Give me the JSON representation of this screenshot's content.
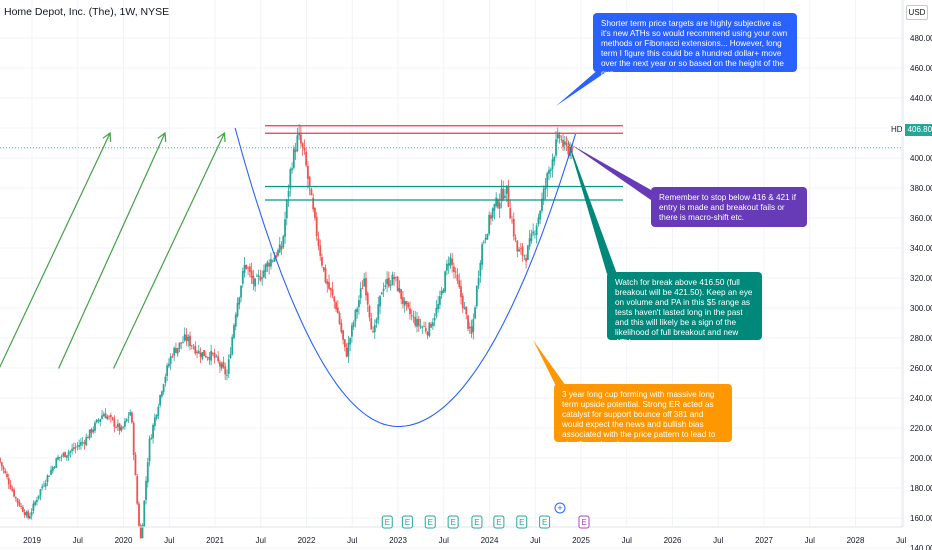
{
  "header": {
    "title": "Home Depot, Inc. (The), 1W, NYSE",
    "currency": "USD"
  },
  "price_tag": {
    "symbol": "HD",
    "value": "406.80"
  },
  "notes": [
    {
      "id": "blue",
      "color": "#2962ff",
      "text": "Shorter term price targets are highly subjective as it's new ATHs so would recommend using your own methods or Fibonacci extensions... However, long term I figure this could be a hundred dollar+ move over the next year or so based on the height of the cup."
    },
    {
      "id": "purple",
      "color": "#673ab7",
      "text": "Remember to stop below 416 & 421 if entry is made and breakout fails or there is macro-shift etc."
    },
    {
      "id": "teal",
      "color": "#00897b",
      "text": "Watch for break above 416.50 (full breakout will be 421.50). Keep an eye on volume and PA in this $5 range as tests haven't lasted long in the past and this will likely be a sign of the likelihood of full breakout and new ATHs."
    },
    {
      "id": "orange",
      "color": "#ff9800",
      "text": "3 year long cup forming with massive long term upside potential. Strong ER acted as catalyst for support bounce off 381 and would expect the news and bullish bias associated with the price pattern to lead to significant breakout."
    }
  ],
  "chart_data": {
    "type": "candlestick",
    "price_axis": {
      "ticks": [
        "480.00",
        "460.00",
        "440.00",
        "420.00",
        "400.00",
        "380.00",
        "360.00",
        "340.00",
        "320.00",
        "300.00",
        "280.00",
        "260.00",
        "240.00",
        "220.00",
        "200.00",
        "180.00",
        "160.00",
        "140.00"
      ],
      "range": [
        137,
        487
      ]
    },
    "time_axis": {
      "ticks": [
        "2019",
        "Jul",
        "2020",
        "Jul",
        "2021",
        "Jul",
        "2022",
        "Jul",
        "2023",
        "Jul",
        "2024",
        "Jul",
        "2025",
        "Jul",
        "2026",
        "Jul",
        "2027",
        "Jul",
        "2028",
        "Jul"
      ],
      "range": [
        "2018-08",
        "2028-12"
      ]
    },
    "last_price": 406.8,
    "levels": {
      "red": [
        421.5,
        416.5
      ],
      "green": [
        381,
        372
      ]
    },
    "price_path": [
      {
        "t": 2018.65,
        "p": 200
      },
      {
        "t": 2018.85,
        "p": 172
      },
      {
        "t": 2018.98,
        "p": 160
      },
      {
        "t": 2019.12,
        "p": 180
      },
      {
        "t": 2019.3,
        "p": 200
      },
      {
        "t": 2019.45,
        "p": 205
      },
      {
        "t": 2019.6,
        "p": 212
      },
      {
        "t": 2019.8,
        "p": 230
      },
      {
        "t": 2020.0,
        "p": 218
      },
      {
        "t": 2020.1,
        "p": 232
      },
      {
        "t": 2020.18,
        "p": 160
      },
      {
        "t": 2020.21,
        "p": 145
      },
      {
        "t": 2020.3,
        "p": 210
      },
      {
        "t": 2020.45,
        "p": 250
      },
      {
        "t": 2020.55,
        "p": 270
      },
      {
        "t": 2020.7,
        "p": 280
      },
      {
        "t": 2020.85,
        "p": 270
      },
      {
        "t": 2021.0,
        "p": 268
      },
      {
        "t": 2021.15,
        "p": 255
      },
      {
        "t": 2021.25,
        "p": 300
      },
      {
        "t": 2021.35,
        "p": 330
      },
      {
        "t": 2021.45,
        "p": 315
      },
      {
        "t": 2021.6,
        "p": 330
      },
      {
        "t": 2021.75,
        "p": 340
      },
      {
        "t": 2021.85,
        "p": 395
      },
      {
        "t": 2021.93,
        "p": 415
      },
      {
        "t": 2022.0,
        "p": 400
      },
      {
        "t": 2022.1,
        "p": 360
      },
      {
        "t": 2022.22,
        "p": 320
      },
      {
        "t": 2022.35,
        "p": 300
      },
      {
        "t": 2022.45,
        "p": 268
      },
      {
        "t": 2022.55,
        "p": 295
      },
      {
        "t": 2022.65,
        "p": 320
      },
      {
        "t": 2022.75,
        "p": 280
      },
      {
        "t": 2022.85,
        "p": 315
      },
      {
        "t": 2022.98,
        "p": 320
      },
      {
        "t": 2023.1,
        "p": 300
      },
      {
        "t": 2023.22,
        "p": 290
      },
      {
        "t": 2023.35,
        "p": 285
      },
      {
        "t": 2023.48,
        "p": 305
      },
      {
        "t": 2023.58,
        "p": 335
      },
      {
        "t": 2023.72,
        "p": 305
      },
      {
        "t": 2023.82,
        "p": 280
      },
      {
        "t": 2023.93,
        "p": 340
      },
      {
        "t": 2024.05,
        "p": 365
      },
      {
        "t": 2024.2,
        "p": 380
      },
      {
        "t": 2024.32,
        "p": 338
      },
      {
        "t": 2024.42,
        "p": 335
      },
      {
        "t": 2024.55,
        "p": 360
      },
      {
        "t": 2024.68,
        "p": 395
      },
      {
        "t": 2024.78,
        "p": 415
      },
      {
        "t": 2024.85,
        "p": 405
      },
      {
        "t": 2024.9,
        "p": 407
      }
    ],
    "cup_curve": {
      "vertex": {
        "t": 2023.0,
        "p": 221
      },
      "left_top": {
        "t": 2021.22,
        "p": 420
      },
      "right_top": {
        "t": 2024.94,
        "p": 416
      }
    },
    "earnings_markers": [
      "E",
      "E",
      "E",
      "E",
      "E",
      "E",
      "E",
      "E"
    ],
    "future_earnings_marker": "E",
    "earnings_plus_label": "+"
  }
}
